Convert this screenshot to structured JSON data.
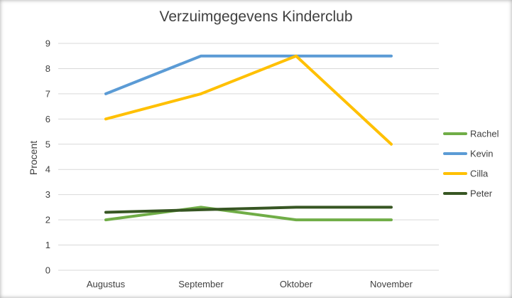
{
  "chart_data": {
    "type": "line",
    "title": "Verzuimgegevens Kinderclub",
    "ylabel": "Procent",
    "xlabel": "",
    "categories": [
      "Augustus",
      "September",
      "Oktober",
      "November"
    ],
    "ylim": [
      0,
      9
    ],
    "yticks": [
      "0",
      "1",
      "2",
      "3",
      "4",
      "5",
      "6",
      "7",
      "8",
      "9"
    ],
    "grid": true,
    "legend_position": "right",
    "series": [
      {
        "name": "Rachel",
        "color": "#70AD47",
        "values": [
          2,
          2.5,
          2,
          2
        ]
      },
      {
        "name": "Kevin",
        "color": "#5B9BD5",
        "values": [
          7,
          8.5,
          8.5,
          8.5
        ]
      },
      {
        "name": "Cilla",
        "color": "#FFC000",
        "values": [
          6,
          7,
          8.5,
          5
        ]
      },
      {
        "name": "Peter",
        "color": "#375623",
        "values": [
          2.3,
          2.4,
          2.5,
          2.5
        ]
      }
    ]
  }
}
